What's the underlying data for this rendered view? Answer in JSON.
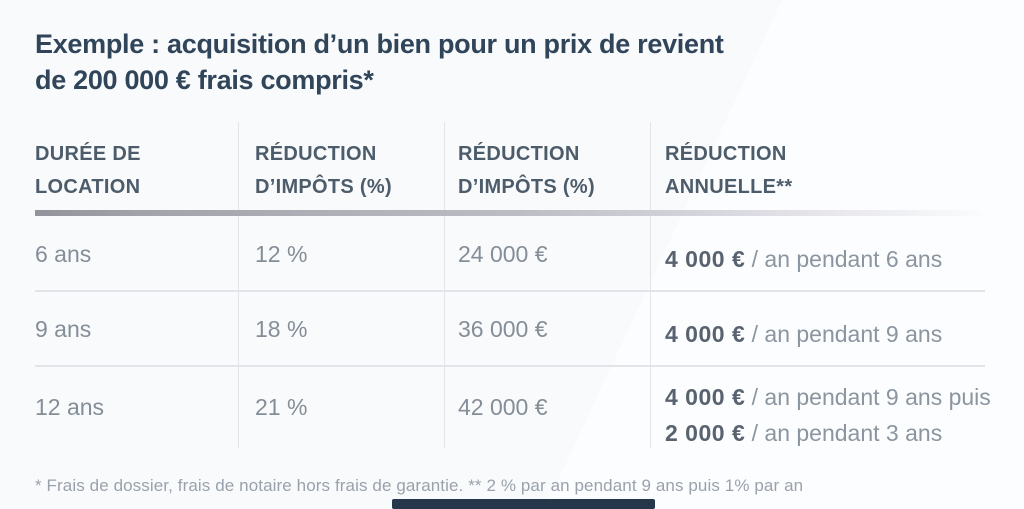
{
  "title": {
    "line1": "Exemple : acquisition d’un bien pour un prix de revient",
    "line2": "de 200 000 € frais compris*"
  },
  "table": {
    "columns": [
      {
        "line1": "DURÉE DE",
        "line2": "LOCATION"
      },
      {
        "line1": "RÉDUCTION",
        "line2": "D’IMPÔTS (%)"
      },
      {
        "line1": "RÉDUCTION",
        "line2": "D’IMPÔTS (%)"
      },
      {
        "line1": "RÉDUCTION",
        "line2": "ANNUELLE**"
      }
    ],
    "rows": [
      {
        "duration": "6 ans",
        "reduction_pct": "12 %",
        "reduction_total": "24 000 €",
        "annual": [
          {
            "amount": "4 000 €",
            "suffix": " / an pendant 6 ans"
          }
        ]
      },
      {
        "duration": "9 ans",
        "reduction_pct": "18 %",
        "reduction_total": "36 000 €",
        "annual": [
          {
            "amount": "4 000 €",
            "suffix": " / an pendant 9 ans"
          }
        ]
      },
      {
        "duration": "12 ans",
        "reduction_pct": "21 %",
        "reduction_total": "42 000 €",
        "annual": [
          {
            "amount": "4 000 €",
            "suffix": " / an pendant 9 ans puis"
          },
          {
            "amount": "2 000 €",
            "suffix": " / an pendant 3 ans"
          }
        ]
      }
    ]
  },
  "footnote": "* Frais de dossier, frais de notaire hors frais de garantie. ** 2 % par an pendant 9 ans puis 1% par an",
  "colors": {
    "background": "#fafbfc",
    "title_text": "#31455a",
    "header_text": "#4d5c6b",
    "body_text": "#848e98",
    "bold_amount_text": "#59636f",
    "divider": "#e3e5e9",
    "header_rule": "#93939c",
    "bottom_bar": "#26364b"
  }
}
